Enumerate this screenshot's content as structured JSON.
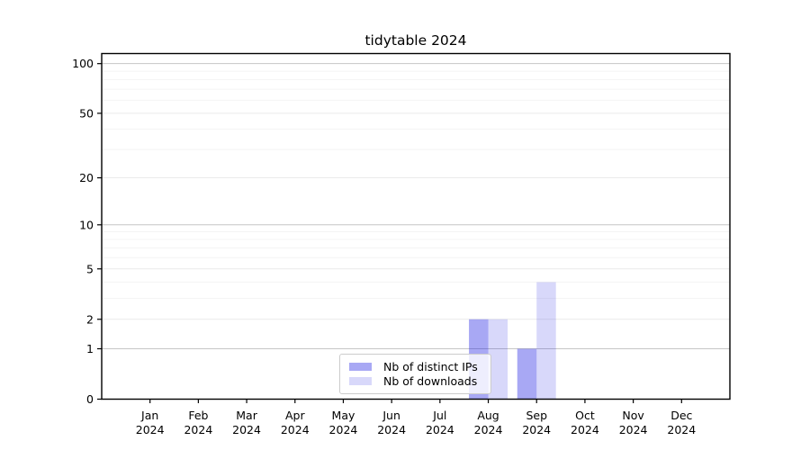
{
  "chart_data": {
    "type": "bar",
    "title": "tidytable 2024",
    "categories": [
      "Jan",
      "Feb",
      "Mar",
      "Apr",
      "May",
      "Jun",
      "Jul",
      "Aug",
      "Sep",
      "Oct",
      "Nov",
      "Dec"
    ],
    "category_year": "2024",
    "series": [
      {
        "name": "Nb of distinct IPs",
        "color": "rgba(25,25,225,0.38)",
        "values": [
          0,
          0,
          0,
          0,
          0,
          0,
          0,
          2,
          1,
          0,
          0,
          0
        ]
      },
      {
        "name": "Nb of downloads",
        "color": "rgba(25,25,225,0.17)",
        "values": [
          0,
          0,
          0,
          0,
          0,
          0,
          0,
          2,
          4,
          0,
          0,
          0
        ]
      }
    ],
    "y_axis": {
      "scale": "log1p",
      "major_ticks": [
        0,
        1,
        2,
        5,
        10,
        20,
        50,
        100
      ],
      "decade_ticks": [
        1,
        10,
        100
      ],
      "minor_ticks": [
        3,
        4,
        6,
        7,
        8,
        9,
        30,
        40,
        60,
        70,
        80,
        90
      ],
      "ylim": [
        0,
        115
      ]
    },
    "grid": true,
    "legend_position": "lower center"
  },
  "colors": {
    "background": "#ffffff",
    "axis": "#000000",
    "grid_major": "#eaeaea",
    "grid_decade": "#c6c6c6",
    "grid_minor": "#f4f4f4",
    "tick_label": "#000000"
  }
}
